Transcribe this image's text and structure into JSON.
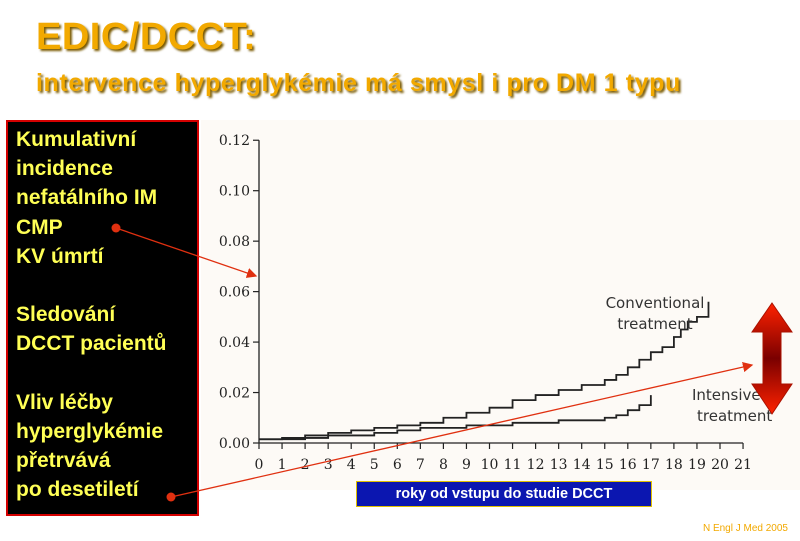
{
  "slide": {
    "title": "EDIC/DCCT:",
    "subtitle": "intervence hyperglykémie má smysl i pro DM 1 typu",
    "source": "N Engl J Med 2005"
  },
  "sidebar": {
    "lines": [
      "Kumulativní",
      "incidence",
      "nefatálního IM",
      "CMP",
      "KV úmrtí",
      "",
      "Sledování",
      "DCCT pacientů",
      "",
      "Vliv léčby",
      "hyperglykémie",
      "přetrvává",
      "po desetiletí"
    ]
  },
  "colors": {
    "title": "#f2a900",
    "sidebar_text": "#ffff55",
    "sidebar_border": "#d40000",
    "xbadge_bg": "#0b16b0",
    "arrow": "#e03010",
    "double_arrow_top": "#ff2200",
    "double_arrow_mid": "#7a0000"
  },
  "chart_data": {
    "type": "line",
    "x_label": "roky od vstupu do studie DCCT",
    "xlim": [
      0,
      21
    ],
    "ylim": [
      0,
      0.12
    ],
    "x_ticks": [
      "0",
      "1",
      "2",
      "3",
      "4",
      "5",
      "6",
      "7",
      "8",
      "9",
      "10",
      "11",
      "12",
      "13",
      "14",
      "15",
      "16",
      "17",
      "18",
      "19",
      "20",
      "21"
    ],
    "y_ticks": [
      "0.00",
      "0.02",
      "0.04",
      "0.06",
      "0.08",
      "0.10",
      "0.12"
    ],
    "series": [
      {
        "name": "Conventional treatment",
        "label_lines": [
          "Conventional",
          "treatment"
        ],
        "x": [
          0,
          1,
          2,
          3,
          4,
          5,
          6,
          7,
          8,
          9,
          10,
          11,
          12,
          13,
          14,
          15,
          15.5,
          16,
          16.5,
          17,
          17.5,
          18,
          18.3,
          18.6,
          19,
          19.5
        ],
        "y": [
          0.0015,
          0.002,
          0.003,
          0.004,
          0.005,
          0.006,
          0.007,
          0.008,
          0.01,
          0.012,
          0.014,
          0.017,
          0.019,
          0.021,
          0.023,
          0.025,
          0.027,
          0.03,
          0.033,
          0.036,
          0.038,
          0.042,
          0.045,
          0.048,
          0.05,
          0.055
        ]
      },
      {
        "name": "Intensive treatment",
        "label_lines": [
          "Intensive",
          "treatment"
        ],
        "x": [
          0,
          2,
          3,
          5,
          6,
          7,
          8,
          9,
          10,
          11,
          12,
          13,
          14,
          15,
          15.5,
          16,
          16.5,
          17
        ],
        "y": [
          0.0015,
          0.002,
          0.003,
          0.004,
          0.005,
          0.006,
          0.006,
          0.007,
          0.007,
          0.008,
          0.008,
          0.009,
          0.009,
          0.01,
          0.011,
          0.013,
          0.015,
          0.018
        ]
      }
    ]
  }
}
